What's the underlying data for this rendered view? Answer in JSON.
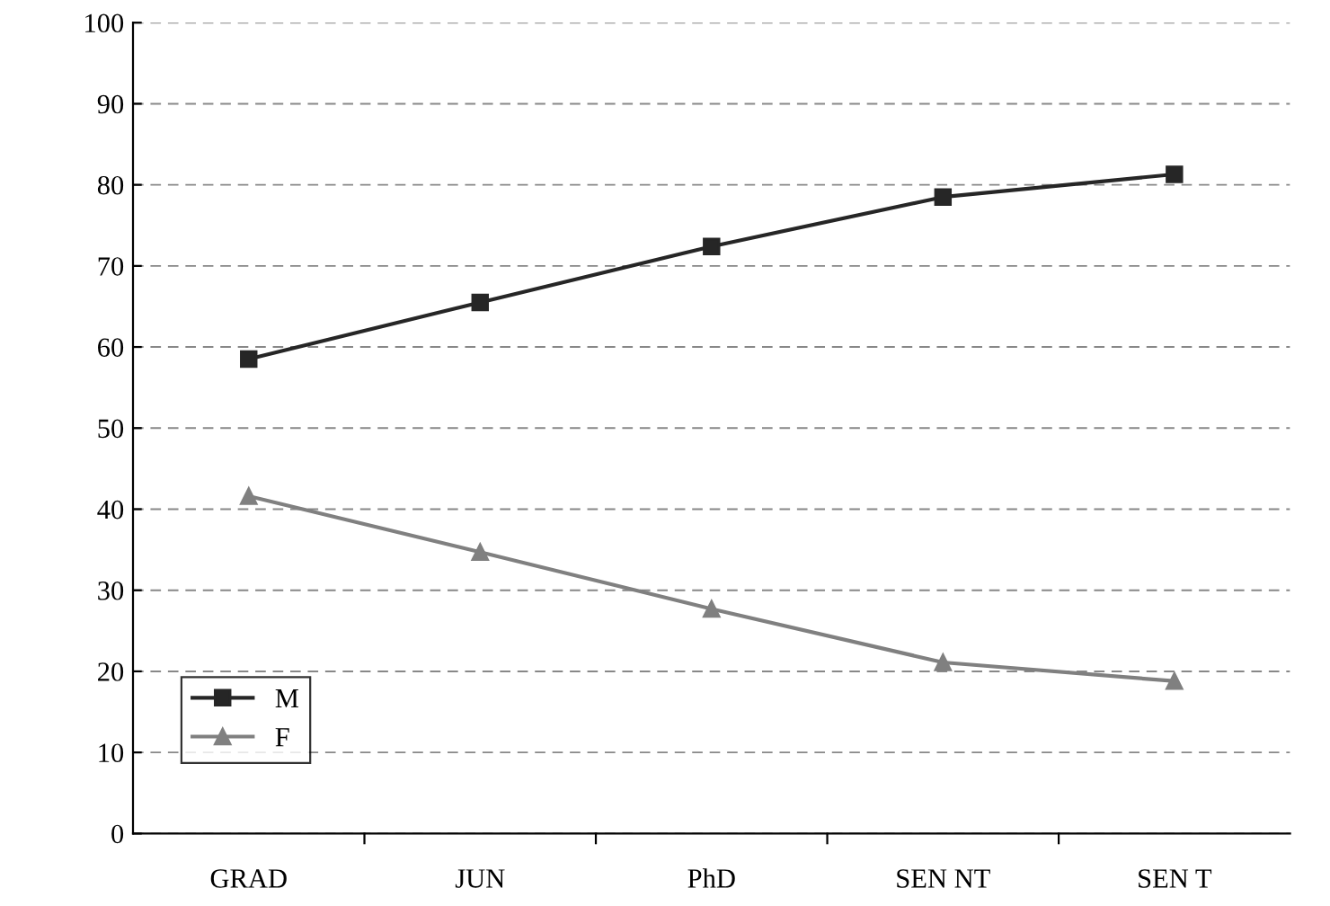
{
  "chart_data": {
    "type": "line",
    "categories": [
      "GRAD",
      "JUN",
      "PhD",
      "SEN NT",
      "SEN T"
    ],
    "series": [
      {
        "name": "M",
        "color": "#262626",
        "marker": "square",
        "values": [
          58.5,
          65.5,
          72.4,
          78.5,
          81.3
        ]
      },
      {
        "name": "F",
        "color": "#808080",
        "marker": "triangle",
        "values": [
          41.6,
          34.7,
          27.7,
          21.1,
          18.8
        ]
      }
    ],
    "ylim": [
      0,
      100
    ],
    "yticks": [
      0,
      10,
      20,
      30,
      40,
      50,
      60,
      70,
      80,
      90,
      100
    ],
    "grid": "y",
    "legend": "bottom left",
    "line_style": "solid"
  }
}
